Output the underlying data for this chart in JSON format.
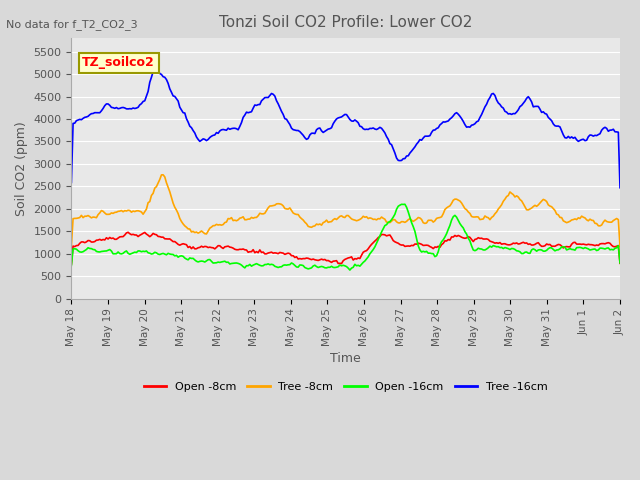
{
  "title": "Tonzi Soil CO2 Profile: Lower CO2",
  "subtitle": "No data for f_T2_CO2_3",
  "ylabel": "Soil CO2 (ppm)",
  "xlabel": "Time",
  "ylim": [
    0,
    5800
  ],
  "yticks": [
    0,
    500,
    1000,
    1500,
    2000,
    2500,
    3000,
    3500,
    4000,
    4500,
    5000,
    5500
  ],
  "legend_label": "TZ_soilco2",
  "background_color": "#e8e8e8",
  "plot_bg_color": "#e0e0e0",
  "series": {
    "open_8cm": {
      "label": "Open -8cm",
      "color": "red"
    },
    "tree_8cm": {
      "label": "Tree -8cm",
      "color": "orange"
    },
    "open_16cm": {
      "label": "Open -16cm",
      "color": "lime"
    },
    "tree_16cm": {
      "label": "Tree -16cm",
      "color": "blue"
    }
  },
  "x_tick_labels": [
    "May 18",
    "May 19",
    "May 20",
    "May 21",
    "May 22",
    "May 23",
    "May 24",
    "May 25",
    "May 26",
    "May 27",
    "May 28",
    "May 29",
    "May 30",
    "May 31",
    "Jun 1",
    "Jun 2"
  ],
  "n_points": 330
}
